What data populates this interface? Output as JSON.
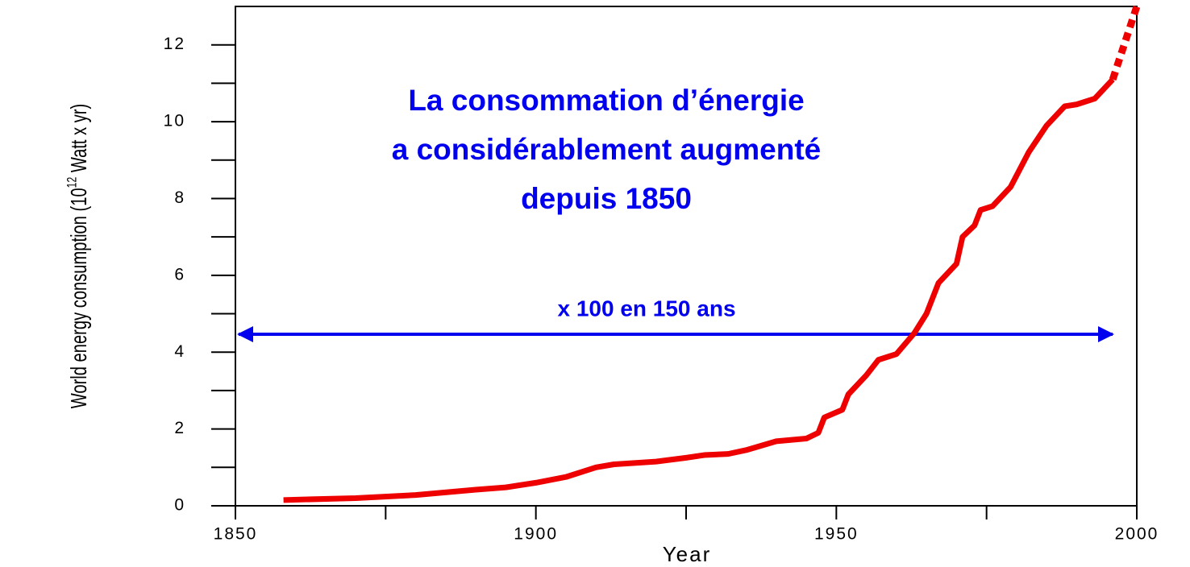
{
  "chart_data": {
    "type": "line",
    "annotation_lines": [
      "La consommation d’énergie",
      "a considérablement augmenté",
      "depuis 1850"
    ],
    "arrow_label": "x 100 en 150 ans",
    "xlabel": "Year",
    "ylabel": "World energy consumption (10",
    "ylabel_sup": "12",
    "ylabel_end": " Watt x yr)",
    "xlim": [
      1850,
      2000
    ],
    "ylim": [
      0,
      13
    ],
    "xticks": [
      1850,
      1900,
      1950,
      2000
    ],
    "yticks": [
      0,
      2,
      4,
      6,
      8,
      10,
      12
    ],
    "xminor_ticks": [
      1875,
      1925,
      1975
    ],
    "yminor_ticks": [
      1,
      3,
      5,
      7,
      9,
      11
    ],
    "series": [
      {
        "color": "#ee0000",
        "style": "solid",
        "x": [
          1858,
          1870,
          1880,
          1890,
          1895,
          1900,
          1905,
          1910,
          1913,
          1920,
          1925,
          1928,
          1932,
          1935,
          1940,
          1945,
          1947,
          1948,
          1951,
          1952,
          1955,
          1957,
          1960,
          1963,
          1965,
          1967,
          1970,
          1971,
          1973,
          1974,
          1976,
          1979,
          1982,
          1985,
          1988,
          1990,
          1993,
          1996
        ],
        "values": [
          0.15,
          0.2,
          0.28,
          0.42,
          0.48,
          0.6,
          0.75,
          1.0,
          1.08,
          1.15,
          1.25,
          1.32,
          1.35,
          1.45,
          1.68,
          1.75,
          1.9,
          2.3,
          2.5,
          2.9,
          3.4,
          3.8,
          3.95,
          4.5,
          5.0,
          5.8,
          6.3,
          7.0,
          7.3,
          7.7,
          7.8,
          8.3,
          9.2,
          9.9,
          10.4,
          10.45,
          10.6,
          11.1
        ]
      },
      {
        "color": "#ee0000",
        "style": "dashed",
        "x": [
          1996,
          2000
        ],
        "values": [
          11.1,
          13
        ]
      }
    ]
  }
}
